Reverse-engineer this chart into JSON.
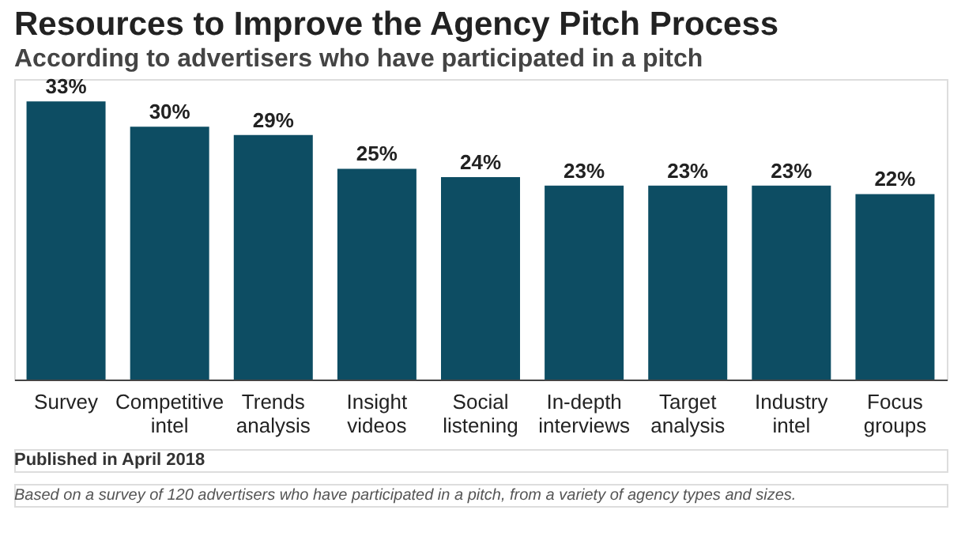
{
  "chart_data": {
    "type": "bar",
    "title": "Resources to Improve the Agency Pitch Process",
    "subtitle": "According to advertisers who have participated in a pitch",
    "categories": [
      "Survey",
      "Competitive intel",
      "Trends analysis",
      "Insight videos",
      "Social listening",
      "In-depth interviews",
      "Target analysis",
      "Industry intel",
      "Focus groups"
    ],
    "values": [
      33,
      30,
      29,
      25,
      24,
      23,
      23,
      23,
      22
    ],
    "value_labels": [
      "33%",
      "30%",
      "29%",
      "25%",
      "24%",
      "23%",
      "23%",
      "23%",
      "22%"
    ],
    "color": "#0d4d63",
    "grid": false,
    "annotations": [
      "Published in April 2018",
      "Based on a survey of 120 advertisers who have participated in a pitch, from a variety of agency types and sizes."
    ]
  }
}
